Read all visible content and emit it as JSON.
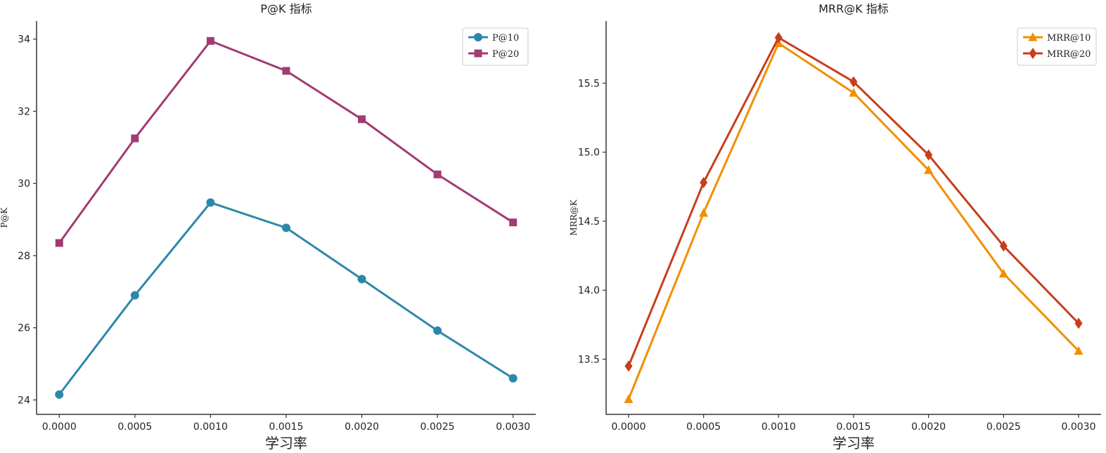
{
  "chart_data": [
    {
      "type": "line",
      "title": "P@K 指标",
      "xlabel": "学习率",
      "ylabel": "P@K",
      "x": [
        0.0,
        0.0005,
        0.001,
        0.0015,
        0.002,
        0.0025,
        0.003
      ],
      "x_tick_labels": [
        "0.0000",
        "0.0005",
        "0.0010",
        "0.0015",
        "0.0020",
        "0.0025",
        "0.0030"
      ],
      "xlim": [
        -0.00015,
        0.00315
      ],
      "ylim": [
        23.6,
        34.5
      ],
      "y_ticks": [
        24,
        26,
        28,
        30,
        32,
        34
      ],
      "y_tick_labels": [
        "24",
        "26",
        "28",
        "30",
        "32",
        "34"
      ],
      "grid": false,
      "legend_position": "top-right",
      "series": [
        {
          "name": "P@10",
          "values": [
            24.15,
            26.9,
            29.47,
            28.77,
            27.35,
            25.92,
            24.6
          ],
          "color": "#2e87aa",
          "marker": "circle"
        },
        {
          "name": "P@20",
          "values": [
            28.35,
            31.25,
            33.95,
            33.12,
            31.78,
            30.25,
            28.92
          ],
          "color": "#a23b72",
          "marker": "square"
        }
      ]
    },
    {
      "type": "line",
      "title": "MRR@K 指标",
      "xlabel": "学习率",
      "ylabel": "MRR@K",
      "x": [
        0.0,
        0.0005,
        0.001,
        0.0015,
        0.002,
        0.0025,
        0.003
      ],
      "x_tick_labels": [
        "0.0000",
        "0.0005",
        "0.0010",
        "0.0015",
        "0.0020",
        "0.0025",
        "0.0030"
      ],
      "xlim": [
        -0.00015,
        0.00315
      ],
      "ylim": [
        13.1,
        15.95
      ],
      "y_ticks": [
        13.5,
        14.0,
        14.5,
        15.0,
        15.5
      ],
      "y_tick_labels": [
        "13.5",
        "14.0",
        "14.5",
        "15.0",
        "15.5"
      ],
      "grid": false,
      "legend_position": "top-right",
      "series": [
        {
          "name": "MRR@10",
          "values": [
            13.21,
            14.56,
            15.79,
            15.43,
            14.87,
            14.12,
            13.56
          ],
          "color": "#f18f01",
          "marker": "triangle"
        },
        {
          "name": "MRR@20",
          "values": [
            13.45,
            14.78,
            15.83,
            15.51,
            14.98,
            14.32,
            13.76
          ],
          "color": "#c73e1d",
          "marker": "diamond"
        }
      ]
    }
  ]
}
